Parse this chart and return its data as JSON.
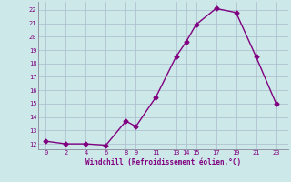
{
  "x": [
    0,
    2,
    4,
    6,
    8,
    9,
    11,
    13,
    14,
    15,
    17,
    19,
    21,
    23
  ],
  "y": [
    12.2,
    12.0,
    12.0,
    11.9,
    13.7,
    13.3,
    15.5,
    18.5,
    19.6,
    20.9,
    22.1,
    21.8,
    18.5,
    15.0
  ],
  "xticks": [
    0,
    2,
    4,
    6,
    8,
    9,
    11,
    13,
    14,
    15,
    17,
    19,
    21,
    23
  ],
  "yticks": [
    12,
    13,
    14,
    15,
    16,
    17,
    18,
    19,
    20,
    21,
    22
  ],
  "ylim": [
    11.6,
    22.6
  ],
  "xlim": [
    -0.8,
    24.2
  ],
  "xlabel": "Windchill (Refroidissement éolien,°C)",
  "line_color": "#800080",
  "bg_color": "#cce8e8",
  "grid_color": "#aabbcc",
  "marker": "D",
  "marker_size": 2.5,
  "line_width": 1.0
}
